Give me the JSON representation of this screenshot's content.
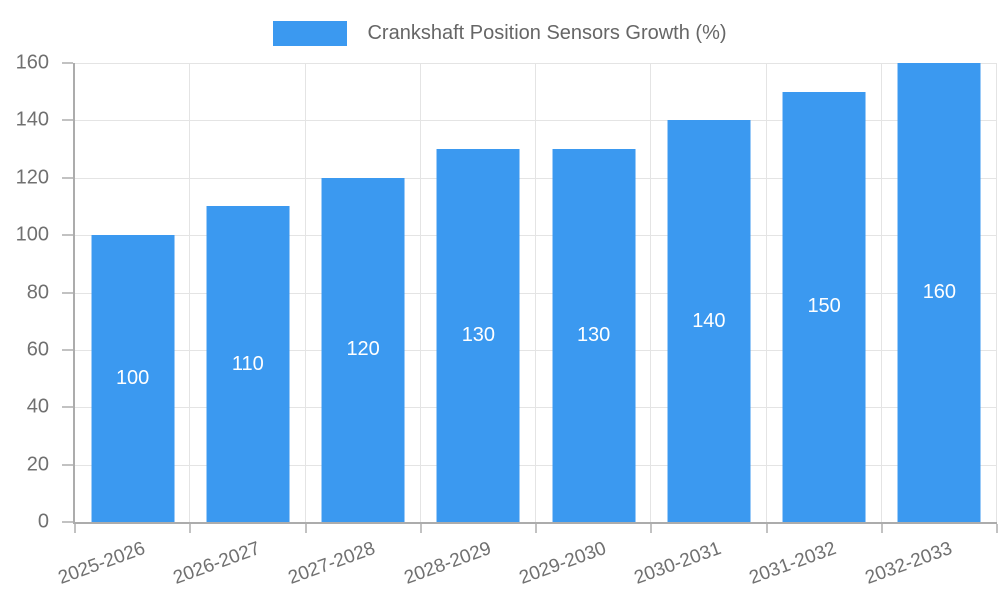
{
  "chart_data": {
    "type": "bar",
    "title": "Crankshaft Position Sensors Growth (%)",
    "categories": [
      "2025-2026",
      "2026-2027",
      "2027-2028",
      "2028-2029",
      "2029-2030",
      "2030-2031",
      "2031-2032",
      "2032-2033"
    ],
    "values": [
      100,
      110,
      120,
      130,
      130,
      140,
      150,
      160
    ],
    "data_labels": [
      "100",
      "110",
      "120",
      "130",
      "130",
      "140",
      "150",
      "160"
    ],
    "ylim": [
      0,
      160
    ],
    "yticks": [
      0,
      20,
      40,
      60,
      80,
      100,
      120,
      140,
      160
    ],
    "grid": true,
    "legend_position": "top",
    "xlabel": "",
    "ylabel": "",
    "colors": {
      "bar": "#3b99f0",
      "bar_value_label": "#ffffff",
      "axis_text": "#707070",
      "legend_text": "#666666",
      "gridline": "#e4e4e4",
      "axis_line": "#acacac",
      "tick_mark": "#c2c2c2",
      "background": "#ffffff"
    }
  }
}
